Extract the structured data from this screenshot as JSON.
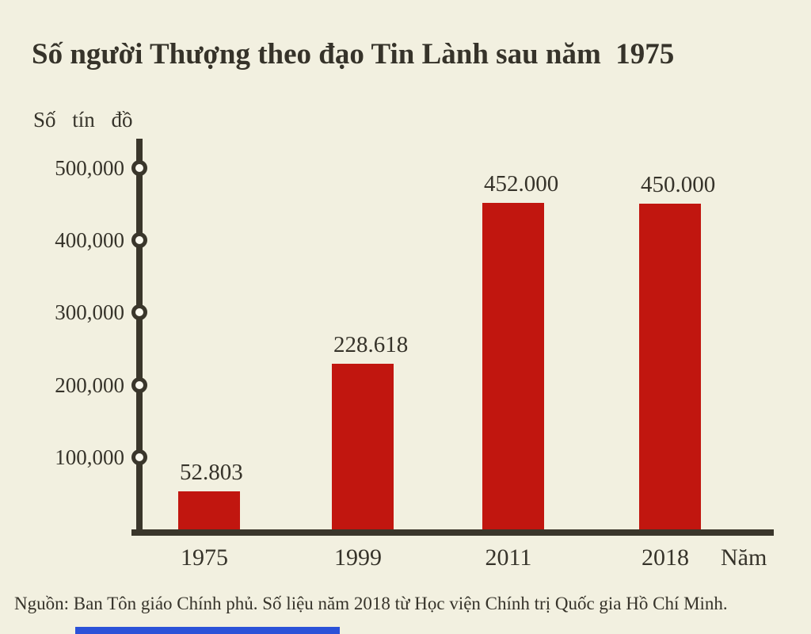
{
  "title": "Số người Thượng theo đạo Tin Lành sau năm  1975",
  "y_axis_label": "Số tín đồ",
  "x_axis_label": "Năm",
  "source": "Nguồn: Ban Tôn giáo Chính phủ. Số liệu năm 2018 từ Học viện Chính trị Quốc gia Hồ Chí Minh.",
  "colors": {
    "background": "#f2f0e0",
    "bar": "#c1160f",
    "axis": "#3a362b",
    "text": "#36332a",
    "tick_marker_fill": "#faf8ee",
    "bottom_accent_bar": "#2b52d8"
  },
  "chart_data": {
    "type": "bar",
    "title": "Số người Thượng theo đạo Tin Lành sau năm 1975",
    "categories": [
      "1975",
      "1999",
      "2011",
      "2018"
    ],
    "values": [
      52803,
      228618,
      452000,
      450000
    ],
    "value_labels": [
      "52.803",
      "228.618",
      "452.000",
      "450.000"
    ],
    "xlabel": "Năm",
    "ylabel": "Số tín đồ",
    "ytick_values": [
      100000,
      200000,
      300000,
      400000,
      500000
    ],
    "ytick_labels": [
      "100,000",
      "200,000",
      "300,000",
      "400,000",
      "500,000"
    ],
    "ylim": [
      0,
      540000
    ],
    "grid": false,
    "legend": "none",
    "bar_color": "#c1160f"
  }
}
